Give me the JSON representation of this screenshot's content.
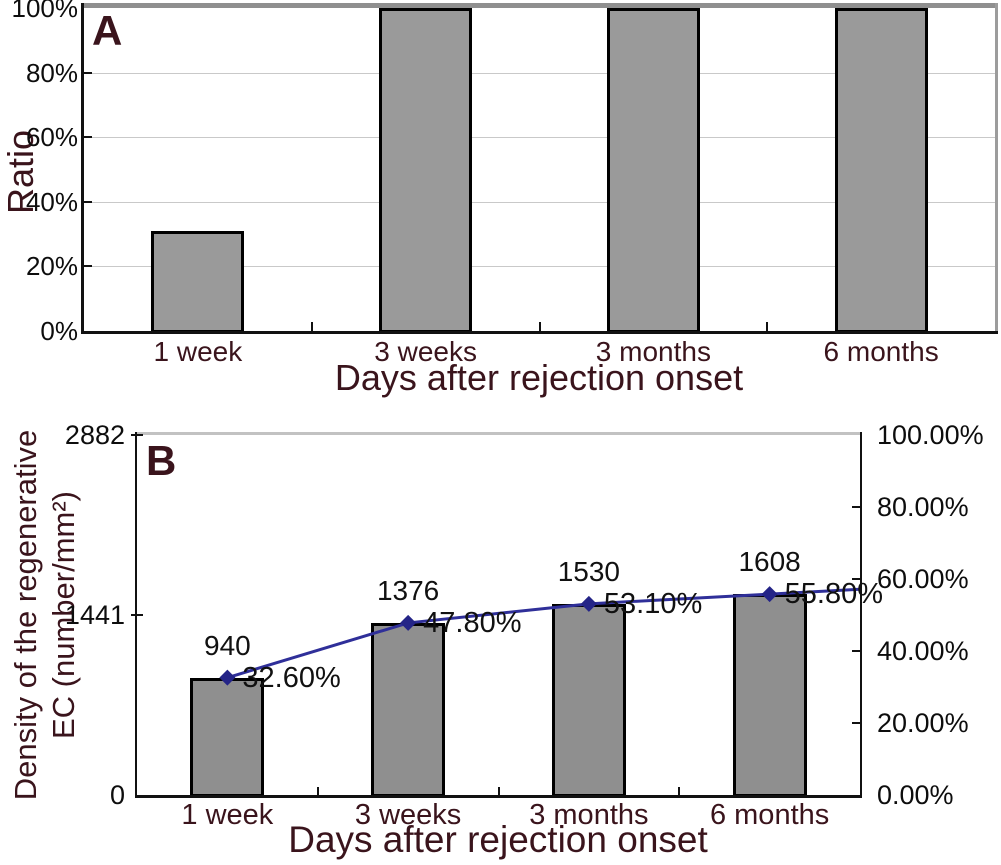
{
  "colors": {
    "bar_fill_a": "#9a9a9a",
    "bar_fill_b": "#8f8f8f",
    "bar_border": "#000000",
    "line": "#2f2f99",
    "marker": "#242487",
    "maroon_text": "#3a141c",
    "grid": "#c9c9c9",
    "panel_a_top_border": "#8f8f8f",
    "panel_a_right_border": "#9c9c9c",
    "panel_b_frame": "#c2c2c2",
    "axis": "#111111"
  },
  "chart_data": [
    {
      "panel_label": "A",
      "type": "bar",
      "categories": [
        "1 week",
        "3 weeks",
        "3 months",
        "6 months"
      ],
      "values_pct": [
        31,
        100,
        100,
        100
      ],
      "ylabel": "Ratio",
      "xlabel": "Days after rejection onset",
      "ylim": [
        0,
        100
      ],
      "grid": "horizontal",
      "yticks": [
        {
          "v": 0,
          "label": "0%"
        },
        {
          "v": 20,
          "label": "20%"
        },
        {
          "v": 40,
          "label": "40%"
        },
        {
          "v": 60,
          "label": "60%"
        },
        {
          "v": 80,
          "label": "80%"
        },
        {
          "v": 100,
          "label": "100%"
        }
      ]
    },
    {
      "panel_label": "B",
      "type": "bar+line",
      "categories": [
        "1 week",
        "3 weeks",
        "3 months",
        "6 months"
      ],
      "series": [
        {
          "name": "density-bars",
          "type": "bar",
          "axis": "left",
          "values": [
            940,
            1376,
            1530,
            1608
          ],
          "point_labels": [
            "940",
            "1376",
            "1530",
            "1608"
          ]
        },
        {
          "name": "ratio-line",
          "type": "line",
          "axis": "right",
          "values_pct": [
            32.6,
            47.8,
            53.1,
            55.8
          ],
          "point_labels": [
            "32.60%",
            "47.80%",
            "53.10%",
            "55.80%"
          ]
        }
      ],
      "ylabel_left_lines": [
        "Density of the regenerative",
        "EC (number/mm²)"
      ],
      "xlabel": "Days after rejection onset",
      "left_ylim": [
        0,
        2882
      ],
      "right_ylim": [
        0,
        100
      ],
      "grid": "none",
      "left_ticks": [
        {
          "v": 0,
          "label": "0"
        },
        {
          "v": 1441,
          "label": "1441"
        },
        {
          "v": 2882,
          "label": "2882"
        }
      ],
      "right_ticks": [
        {
          "v": 0,
          "label": "0.00%"
        },
        {
          "v": 20,
          "label": "20.00%"
        },
        {
          "v": 40,
          "label": "40.00%"
        },
        {
          "v": 60,
          "label": "60.00%"
        },
        {
          "v": 80,
          "label": "80.00%"
        },
        {
          "v": 100,
          "label": "100.00%"
        }
      ]
    }
  ]
}
